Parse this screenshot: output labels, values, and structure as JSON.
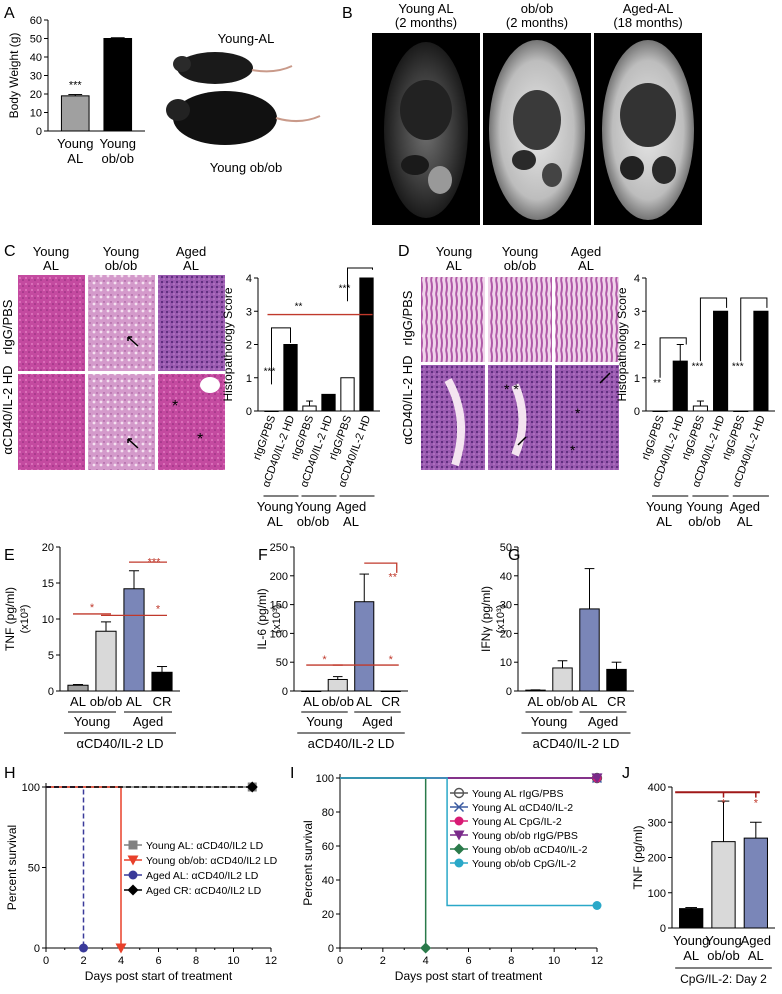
{
  "panels": {
    "A": {
      "letter": "A",
      "chart_data": {
        "type": "bar",
        "ylabel": "Body Weight (g)",
        "yticks": [
          "0",
          "10",
          "20",
          "30",
          "40",
          "50",
          "60"
        ],
        "ylim": [
          0,
          60
        ],
        "categories": [
          [
            "Young",
            "AL"
          ],
          [
            "Young",
            "ob/ob"
          ]
        ],
        "values": [
          19,
          50
        ],
        "errors": [
          0.7,
          0.4
        ],
        "colors": [
          "#a0a0a0",
          "#000000"
        ],
        "annotations": [
          "***",
          ""
        ]
      },
      "photo_labels": {
        "top": "Young-AL",
        "bottom": "Young ob/ob"
      }
    },
    "B": {
      "letter": "B",
      "columns": [
        [
          "Young AL",
          "(2 months)"
        ],
        [
          "ob/ob",
          "(2 months)"
        ],
        [
          "Aged-AL",
          "(18 months)"
        ]
      ]
    },
    "C": {
      "letter": "C",
      "col_headers": [
        [
          "Young",
          "AL"
        ],
        [
          "Young",
          "ob/ob"
        ],
        [
          "Aged",
          "AL"
        ]
      ],
      "row_labels": [
        "rIgG/PBS",
        "αCD40/IL-2 HD"
      ],
      "chart_data": {
        "type": "bar",
        "ylabel": "Histopathology Score",
        "yticks": [
          "0",
          "1",
          "2",
          "3",
          "4"
        ],
        "ylim": [
          0,
          4
        ],
        "categories": [
          "rIgG/PBS",
          "αCD40/IL-2 HD",
          "rIgG/PBS",
          "αCD40/IL-2 HD",
          "rIgG/PBS",
          "αCD40/IL-2 HD"
        ],
        "values": [
          0,
          2,
          0.15,
          0.5,
          1,
          4
        ],
        "errors": [
          0,
          0,
          0.15,
          0,
          0,
          0
        ],
        "colors": [
          "#ffffff",
          "#000000",
          "#ffffff",
          "#000000",
          "#ffffff",
          "#000000"
        ],
        "groups": [
          [
            "Young",
            "AL"
          ],
          [
            "Young",
            "ob/ob"
          ],
          [
            "Aged",
            "AL"
          ]
        ],
        "sig": [
          "***",
          "**",
          "***"
        ]
      }
    },
    "D": {
      "letter": "D",
      "col_headers": [
        [
          "Young",
          "AL"
        ],
        [
          "Young",
          "ob/ob"
        ],
        [
          "Aged",
          "AL"
        ]
      ],
      "row_labels": [
        "rIgG/PBS",
        "αCD40/IL-2 HD"
      ],
      "chart_data": {
        "type": "bar",
        "ylabel": "Histopathology Score",
        "yticks": [
          "0",
          "1",
          "2",
          "3",
          "4"
        ],
        "ylim": [
          0,
          4
        ],
        "categories": [
          "rIgG/PBS",
          "αCD40/IL-2 HD",
          "rIgG/PBS",
          "αCD40/IL-2 HD",
          "rIgG/PBS",
          "αCD40/IL-2 HD"
        ],
        "values": [
          0,
          1.5,
          0.15,
          3,
          0,
          3
        ],
        "errors": [
          0,
          0.5,
          0.15,
          0,
          0,
          0
        ],
        "colors": [
          "#ffffff",
          "#000000",
          "#ffffff",
          "#000000",
          "#ffffff",
          "#000000"
        ],
        "groups": [
          [
            "Young",
            "AL"
          ],
          [
            "Young",
            "ob/ob"
          ],
          [
            "Aged",
            "AL"
          ]
        ],
        "sig": [
          "**",
          "***",
          "***"
        ]
      }
    },
    "E": {
      "letter": "E",
      "chart_data": {
        "type": "bar",
        "ylabel": "TNF (pg/ml)",
        "ylabel2": "(x10³)",
        "yticks": [
          "0",
          "5",
          "10",
          "15",
          "20"
        ],
        "ylim": [
          0,
          20
        ],
        "categories": [
          "AL",
          "ob/ob",
          "AL",
          "CR"
        ],
        "values": [
          0.8,
          8.3,
          14.2,
          2.6
        ],
        "errors": [
          0.1,
          1.3,
          2.5,
          0.8
        ],
        "colors": [
          "#a0a0a0",
          "#d9d9d9",
          "#7a86b8",
          "#000000"
        ],
        "groups": [
          "Young",
          "Aged"
        ],
        "treatment": "αCD40/IL-2 LD",
        "sig": [
          "*",
          "***",
          "*"
        ]
      }
    },
    "F": {
      "letter": "F",
      "chart_data": {
        "type": "bar",
        "ylabel": "IL-6 (pg/ml)",
        "ylabel2": "(x10³)",
        "yticks": [
          "0",
          "50",
          "100",
          "150",
          "200",
          "250"
        ],
        "ylim": [
          0,
          250
        ],
        "categories": [
          "AL",
          "ob/ob",
          "AL",
          "CR"
        ],
        "values": [
          0,
          20,
          155,
          0
        ],
        "errors": [
          0,
          5,
          48,
          0
        ],
        "colors": [
          "#a0a0a0",
          "#d9d9d9",
          "#7a86b8",
          "#000000"
        ],
        "groups": [
          "Young",
          "Aged"
        ],
        "treatment": "aCD40/IL-2 LD",
        "sig": [
          "*",
          "**",
          "*"
        ]
      }
    },
    "G": {
      "letter": "G",
      "chart_data": {
        "type": "bar",
        "ylabel": "IFNγ (pg/ml)",
        "ylabel2": "(x10³)",
        "yticks": [
          "0",
          "10",
          "20",
          "30",
          "40",
          "50"
        ],
        "ylim": [
          0,
          50
        ],
        "categories": [
          "AL",
          "ob/ob",
          "AL",
          "CR"
        ],
        "values": [
          0.3,
          8,
          28.5,
          7.5
        ],
        "errors": [
          0.1,
          2.5,
          14,
          2.5
        ],
        "colors": [
          "#a0a0a0",
          "#d9d9d9",
          "#7a86b8",
          "#000000"
        ],
        "groups": [
          "Young",
          "Aged"
        ],
        "treatment": "aCD40/IL-2 LD"
      }
    },
    "H": {
      "letter": "H",
      "chart_data": {
        "type": "line",
        "ylabel": "Percent survival",
        "xlabel": "Days post start of treatment",
        "xticks": [
          "0",
          "2",
          "4",
          "6",
          "8",
          "10",
          "12"
        ],
        "yticks": [
          "0",
          "50",
          "100"
        ],
        "xlim": [
          0,
          12
        ],
        "ylim": [
          0,
          100
        ],
        "series": [
          {
            "name": "Young AL: αCD40/IL2 LD",
            "color": "#808080",
            "marker": "square",
            "dash": "solid",
            "points": [
              [
                0,
                100
              ],
              [
                11,
                100
              ]
            ]
          },
          {
            "name": "Young ob/ob: αCD40/IL2 LD",
            "color": "#e8402a",
            "marker": "triangle-down",
            "dash": "solid",
            "points": [
              [
                0,
                100
              ],
              [
                4,
                100
              ],
              [
                4,
                0
              ]
            ]
          },
          {
            "name": "Aged AL: αCD40/IL2 LD",
            "color": "#3a3a9a",
            "marker": "circle",
            "dash": "dashed",
            "points": [
              [
                0,
                100
              ],
              [
                2,
                100
              ],
              [
                2,
                0
              ]
            ]
          },
          {
            "name": "Aged CR: αCD40/IL2 LD",
            "color": "#000000",
            "marker": "diamond",
            "dash": "dashed",
            "points": [
              [
                0,
                100
              ],
              [
                11,
                100
              ]
            ]
          }
        ]
      }
    },
    "I": {
      "letter": "I",
      "chart_data": {
        "type": "line",
        "ylabel": "Percent survival",
        "xlabel": "Days post start of treatment",
        "xticks": [
          "0",
          "2",
          "4",
          "6",
          "8",
          "10",
          "12"
        ],
        "yticks": [
          "0",
          "20",
          "40",
          "60",
          "80",
          "100"
        ],
        "xlim": [
          0,
          12
        ],
        "ylim": [
          0,
          100
        ],
        "series": [
          {
            "name": "Young AL rIgG/PBS",
            "color": "#555555",
            "marker": "circle-open",
            "points": [
              [
                0,
                100
              ],
              [
                12,
                100
              ]
            ]
          },
          {
            "name": "Young AL αCD40/IL-2",
            "color": "#3a5aa0",
            "marker": "x",
            "points": [
              [
                0,
                100
              ],
              [
                12,
                100
              ]
            ]
          },
          {
            "name": "Young AL CpG/IL-2",
            "color": "#d81b74",
            "marker": "hexagon",
            "points": [
              [
                0,
                100
              ],
              [
                12,
                100
              ]
            ]
          },
          {
            "name": "Young ob/ob rIgG/PBS",
            "color": "#7a2a8a",
            "marker": "triangle-down",
            "points": [
              [
                0,
                100
              ],
              [
                12,
                100
              ]
            ]
          },
          {
            "name": "Young ob/ob αCD40/IL-2",
            "color": "#2a7a4a",
            "marker": "diamond",
            "points": [
              [
                0,
                100
              ],
              [
                4,
                100
              ],
              [
                4,
                0
              ]
            ]
          },
          {
            "name": "Young ob/ob CpG/IL-2",
            "color": "#2aa8c8",
            "marker": "circle",
            "points": [
              [
                0,
                100
              ],
              [
                5,
                100
              ],
              [
                5,
                25
              ],
              [
                12,
                25
              ]
            ]
          }
        ]
      }
    },
    "J": {
      "letter": "J",
      "chart_data": {
        "type": "bar",
        "ylabel": "TNF (pg/ml)",
        "yticks": [
          "0",
          "100",
          "200",
          "300",
          "400"
        ],
        "ylim": [
          0,
          400
        ],
        "categories": [
          [
            "Young",
            "AL"
          ],
          [
            "Young",
            "ob/ob"
          ],
          [
            "Aged",
            "AL"
          ]
        ],
        "values": [
          55,
          245,
          255
        ],
        "errors": [
          3,
          115,
          45
        ],
        "colors": [
          "#000000",
          "#d9d9d9",
          "#7a86b8"
        ],
        "treatment": "CpG/IL-2: Day 2",
        "sig": [
          "*",
          "*"
        ]
      }
    }
  }
}
